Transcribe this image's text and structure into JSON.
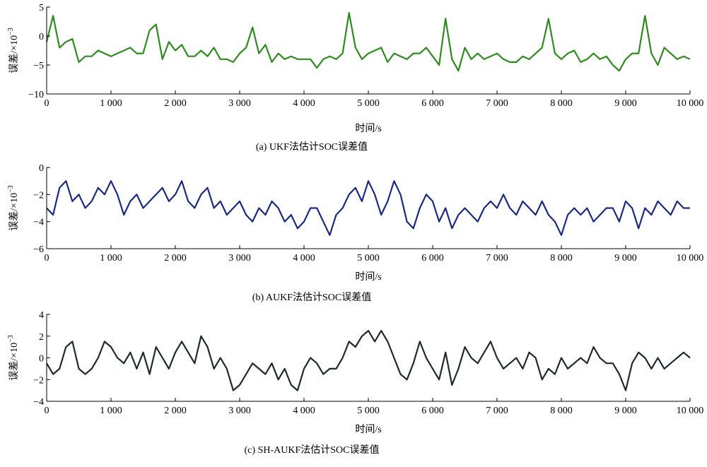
{
  "chart_data": [
    {
      "type": "line",
      "ylabel": "误差/×10",
      "ylabel_exp": "−3",
      "xlabel": "时间/s",
      "caption": "(a) UKF法估计SOC误差值",
      "color": "#2e8b1e",
      "xlim": [
        0,
        10000
      ],
      "ylim": [
        -10,
        5
      ],
      "yticks": [
        -10,
        -5,
        0,
        5
      ],
      "ytick_labels": [
        "−10",
        "−5",
        "0",
        "5"
      ],
      "xticks": [
        0,
        1000,
        2000,
        3000,
        4000,
        5000,
        6000,
        7000,
        8000,
        9000,
        10000
      ],
      "xtick_labels": [
        "0",
        "1 000",
        "2 000",
        "3 000",
        "4 000",
        "5 000",
        "6 000",
        "7 000",
        "8 000",
        "9 000",
        "10 000"
      ],
      "x_step": 100,
      "values": [
        -1,
        3.5,
        -2,
        -1,
        -0.5,
        -4.5,
        -3.5,
        -3.5,
        -2.5,
        -3,
        -3.5,
        -3,
        -2.5,
        -2,
        -3,
        -3,
        1,
        2,
        -4,
        -1,
        -2.5,
        -1.5,
        -3.5,
        -3.5,
        -2.5,
        -3.5,
        -2,
        -4,
        -4,
        -4.5,
        -3,
        -2,
        1.5,
        -3,
        -1.5,
        -4.5,
        -3,
        -4,
        -3.5,
        -4,
        -4,
        -4,
        -5.5,
        -4,
        -3.5,
        -4,
        -3,
        4,
        -2,
        -4,
        -3,
        -2.5,
        -2,
        -4.5,
        -3,
        -3.5,
        -4,
        -3,
        -3,
        -2,
        -3.5,
        -5,
        3,
        -4,
        -6,
        -2,
        -4,
        -3,
        -4,
        -3.5,
        -3,
        -4,
        -4.5,
        -4.5,
        -3.5,
        -4,
        -3,
        -2,
        3,
        -3,
        -4,
        -3,
        -2.5,
        -4.5,
        -4,
        -3,
        -4,
        -3.5,
        -5,
        -6,
        -4,
        -3,
        -3,
        3.5,
        -3,
        -5,
        -2,
        -3,
        -4,
        -3.5,
        -4
      ]
    },
    {
      "type": "line",
      "ylabel": "误差/×10",
      "ylabel_exp": "−3",
      "xlabel": "时间/s",
      "caption": "(b) AUKF法估计SOC误差值",
      "color": "#1a2a80",
      "xlim": [
        0,
        10000
      ],
      "ylim": [
        -6,
        0
      ],
      "yticks": [
        -6,
        -4,
        -2,
        0
      ],
      "ytick_labels": [
        "−6",
        "−4",
        "−2",
        "0"
      ],
      "xticks": [
        0,
        1000,
        2000,
        3000,
        4000,
        5000,
        6000,
        7000,
        8000,
        9000,
        10000
      ],
      "xtick_labels": [
        "0",
        "1 000",
        "2 000",
        "3 000",
        "4 000",
        "5 000",
        "6 000",
        "7 000",
        "8 000",
        "9 000",
        "10 000"
      ],
      "x_step": 100,
      "values": [
        -3,
        -3.5,
        -1.5,
        -1,
        -2.5,
        -2,
        -3,
        -2.5,
        -1.5,
        -2,
        -1,
        -2,
        -3.5,
        -2.5,
        -2,
        -3,
        -2.5,
        -2,
        -1.5,
        -2.5,
        -2,
        -1,
        -2.5,
        -3,
        -2,
        -1.5,
        -3,
        -2.5,
        -3.5,
        -3,
        -2.5,
        -3.5,
        -4,
        -3,
        -3.5,
        -2.5,
        -3,
        -4,
        -3.5,
        -4.5,
        -4,
        -3,
        -3,
        -4,
        -5,
        -3.5,
        -3,
        -2,
        -1.5,
        -2.5,
        -1,
        -2,
        -3.5,
        -2.5,
        -1,
        -2,
        -4,
        -4.5,
        -3,
        -2,
        -2.5,
        -4,
        -3,
        -4.5,
        -3.5,
        -3,
        -3.5,
        -4,
        -3,
        -2.5,
        -3,
        -2,
        -3,
        -3.5,
        -2.5,
        -3,
        -3.5,
        -2.5,
        -3.5,
        -4,
        -5,
        -3.5,
        -3,
        -3.5,
        -3,
        -4,
        -3.5,
        -3,
        -3,
        -4,
        -2.5,
        -3,
        -4.5,
        -3,
        -3.5,
        -2.5,
        -3,
        -3.5,
        -2.5,
        -3,
        -3
      ]
    },
    {
      "type": "line",
      "ylabel": "误差/×10",
      "ylabel_exp": "−3",
      "xlabel": "时间/s",
      "caption": "(c) SH-AUKF法估计SOC误差值",
      "color": "#1e2a30",
      "xlim": [
        0,
        10000
      ],
      "ylim": [
        -4,
        4
      ],
      "yticks": [
        -4,
        -2,
        0,
        2,
        4
      ],
      "ytick_labels": [
        "−4",
        "−2",
        "0",
        "2",
        "4"
      ],
      "xticks": [
        0,
        1000,
        2000,
        3000,
        4000,
        5000,
        6000,
        7000,
        8000,
        9000,
        10000
      ],
      "xtick_labels": [
        "0",
        "1 000",
        "2 000",
        "3 000",
        "4 000",
        "5 000",
        "6 000",
        "7 000",
        "8 000",
        "9 000",
        "10 000"
      ],
      "x_step": 100,
      "values": [
        -0.5,
        -1.5,
        -1,
        1,
        1.5,
        -1,
        -1.5,
        -1,
        0,
        1.5,
        1,
        0,
        -0.5,
        0.5,
        -1,
        0.5,
        -1.5,
        1,
        0,
        -1,
        0.5,
        1.5,
        0.5,
        -0.5,
        2,
        1,
        -1,
        0,
        -1,
        -3,
        -2.5,
        -1.5,
        -0.5,
        -1,
        -1.5,
        -0.5,
        -2,
        -1,
        -2.5,
        -3,
        -1,
        0,
        -0.5,
        -1.5,
        -1,
        -1,
        0,
        1.5,
        1,
        2,
        2.5,
        1.5,
        2.5,
        1.5,
        0,
        -1.5,
        -2,
        -0.5,
        1.5,
        0,
        -1,
        -2,
        0.5,
        -2.5,
        -1,
        1,
        0,
        -0.5,
        0.5,
        1.5,
        0,
        -1,
        -0.5,
        0,
        -1,
        0.5,
        0,
        -2,
        -1,
        -1.5,
        0,
        -1,
        -0.5,
        0,
        -0.5,
        1,
        0,
        -0.5,
        -0.5,
        -1.5,
        -3,
        -0.5,
        0.5,
        0,
        -1,
        0,
        -1,
        -0.5,
        0,
        0.5,
        0
      ]
    }
  ]
}
